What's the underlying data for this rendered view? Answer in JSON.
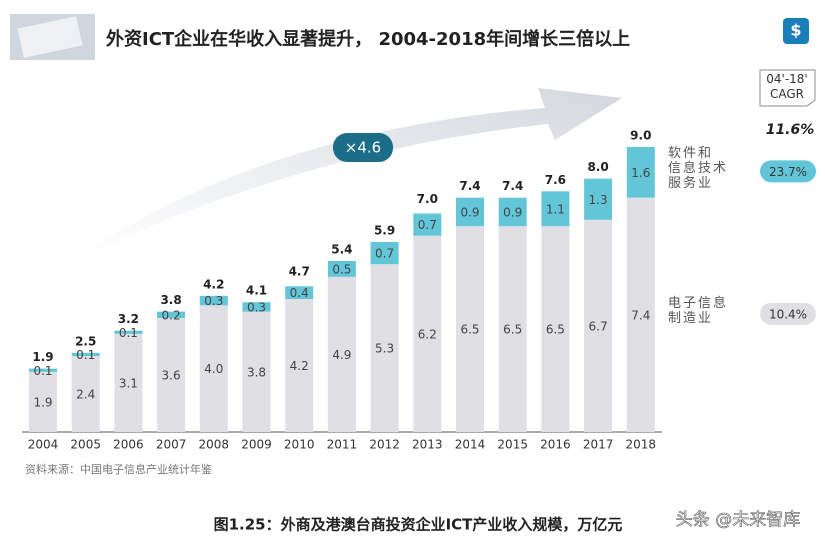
{
  "header": {
    "title": "外资ICT企业在华收入显著提升， 2004-2018年间增长三倍以上"
  },
  "chart_data": {
    "type": "stacked_bar",
    "categories": [
      "2004",
      "2005",
      "2006",
      "2007",
      "2008",
      "2009",
      "2010",
      "2011",
      "2012",
      "2013",
      "2014",
      "2015",
      "2016",
      "2017",
      "2018"
    ],
    "series": [
      {
        "name": "电子信息\n制造业",
        "color": "#dfdfe4",
        "cagr": "10.4%",
        "values": [
          1.9,
          2.4,
          3.1,
          3.6,
          4.0,
          3.8,
          4.2,
          4.9,
          5.3,
          6.2,
          6.5,
          6.5,
          6.5,
          6.7,
          7.4
        ],
        "value_labels": [
          "1.9",
          "2.4",
          "3.1",
          "3.6",
          "4.0",
          "3.8",
          "4.2",
          "4.9",
          "5.3",
          "6.2",
          "6.5",
          "6.5",
          "6.5",
          "6.7",
          "7.4"
        ]
      },
      {
        "name": "软件和\n信息技术\n服务业",
        "color": "#62c6d8",
        "cagr": "23.7%",
        "values": [
          0.1,
          0.1,
          0.1,
          0.2,
          0.3,
          0.3,
          0.4,
          0.5,
          0.7,
          0.7,
          0.9,
          0.9,
          1.1,
          1.3,
          1.6
        ],
        "value_labels": [
          "0.1",
          "0.1",
          "0.1",
          "0.2",
          "0.3",
          "0.3",
          "0.4",
          "0.5",
          "0.7",
          "0.7",
          "0.9",
          "0.9",
          "1.1",
          "1.3",
          "1.6"
        ]
      }
    ],
    "totals": [
      1.9,
      2.5,
      3.2,
      3.8,
      4.2,
      4.1,
      4.7,
      5.4,
      5.9,
      7.0,
      7.4,
      7.4,
      7.6,
      8.0,
      9.0
    ],
    "total_labels": [
      "1.9",
      "2.5",
      "3.2",
      "3.8",
      "4.2",
      "4.1",
      "4.7",
      "5.4",
      "5.9",
      "7.0",
      "7.4",
      "7.4",
      "7.6",
      "8.0",
      "9.0"
    ],
    "ylim": [
      0,
      9
    ],
    "growth_label": "×4.6",
    "cagr_header": "04'-18'\nCAGR",
    "cagr_total": "11.6%",
    "source": "资料来源：中国电子信息产业统计年鉴"
  },
  "caption": "图1.25：外商及港澳台商投资企业ICT产业收入规模，万亿元",
  "watermark": "头条 @未来智库"
}
